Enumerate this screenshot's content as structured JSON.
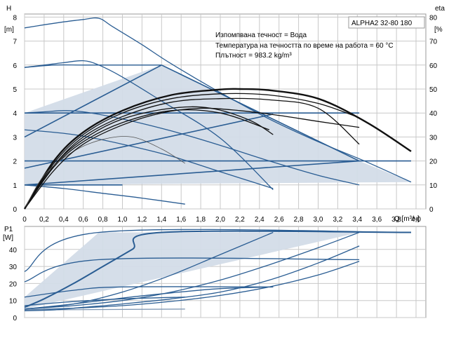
{
  "chart_data": [
    {
      "type": "line",
      "model_label": "ALPHA2 32-80 180",
      "notes": [
        "Изпомпвана течност = Вода",
        "Температура на течността по време на работа = 60 °C",
        "Плътност = 983.2 kg/m³"
      ],
      "ylabel_line1": "H",
      "ylabel_line2": "[m]",
      "y2label_line1": "eta",
      "y2label_line2": "[%",
      "xlabel": "Q [m³/ч]",
      "x_ticks": [
        "0",
        "0,2",
        "0,4",
        "0,6",
        "0,8",
        "1,0",
        "1,2",
        "1,4",
        "1,6",
        "1,8",
        "2,0",
        "2,2",
        "2,4",
        "2,6",
        "2,8",
        "3,0",
        "3,2",
        "3,4",
        "3,6",
        "3,8",
        "4,0"
      ],
      "y_ticks": [
        "0",
        "1",
        "2",
        "3",
        "4",
        "5",
        "6",
        "7",
        "8"
      ],
      "y2_ticks": [
        "0",
        "10",
        "20",
        "30",
        "40",
        "50",
        "60",
        "70",
        "80"
      ],
      "xlim": [
        0,
        4.05
      ],
      "ylim": [
        0,
        8.8
      ],
      "y2lim": [
        0,
        88
      ],
      "grid": true,
      "operating_area": [
        [
          0,
          1
        ],
        [
          0,
          4
        ],
        [
          1.4,
          6
        ],
        [
          3.42,
          2
        ],
        [
          3.95,
          1.12
        ]
      ],
      "series": [
        {
          "role": "pump",
          "x": [
            0,
            0.2,
            0.4,
            0.6,
            0.76,
            0.9,
            1.2,
            1.5,
            2.0,
            2.5,
            3.0,
            3.5,
            3.95
          ],
          "y": [
            7.55,
            7.68,
            7.8,
            7.9,
            7.95,
            7.6,
            6.85,
            6.05,
            4.85,
            3.75,
            2.8,
            1.95,
            1.12
          ]
        },
        {
          "role": "pump",
          "x": [
            0,
            0.2,
            0.4,
            0.6,
            0.76,
            1.0,
            1.4,
            2.0,
            2.54
          ],
          "y": [
            5.9,
            6.0,
            6.1,
            6.18,
            6.0,
            5.5,
            4.5,
            2.95,
            0.8
          ]
        },
        {
          "role": "pump",
          "x": [
            0,
            0.3,
            0.6,
            1.0,
            1.4
          ],
          "y": [
            5.9,
            6.0,
            6.0,
            6.0,
            6.0
          ]
        },
        {
          "role": "pump",
          "x": [
            0,
            1.4
          ],
          "y": [
            3.0,
            6.0
          ]
        },
        {
          "role": "pump",
          "x": [
            1.4,
            3.42
          ],
          "y": [
            6.0,
            2.0
          ]
        },
        {
          "role": "pump",
          "x": [
            0,
            0.2,
            0.4,
            0.6,
            1.0,
            1.5,
            2.0,
            2.5,
            3.0,
            3.42
          ],
          "y": [
            4.0,
            4.05,
            4.1,
            4.05,
            3.75,
            3.25,
            2.65,
            2.0,
            1.4,
            1.0
          ]
        },
        {
          "role": "pump",
          "x": [
            0,
            3.42
          ],
          "y": [
            4.0,
            4.0
          ]
        },
        {
          "role": "pump",
          "x": [
            0,
            3.42
          ],
          "y": [
            1.0,
            2.0
          ]
        },
        {
          "role": "pump",
          "x": [
            0,
            3.95
          ],
          "y": [
            2.0,
            2.0
          ]
        },
        {
          "role": "pump",
          "x": [
            0,
            2.54
          ],
          "y": [
            1.7,
            3.95
          ]
        },
        {
          "role": "pump",
          "x": [
            0,
            1.0
          ],
          "y": [
            1.0,
            1.0
          ]
        },
        {
          "role": "pump",
          "x": [
            0,
            0.5,
            1.0,
            1.5,
            2.0,
            2.54
          ],
          "y": [
            3.3,
            3.1,
            2.7,
            2.2,
            1.55,
            0.85
          ]
        },
        {
          "role": "pump",
          "x": [
            0,
            0.4,
            0.8,
            1.2,
            1.64
          ],
          "y": [
            1.0,
            0.85,
            0.65,
            0.45,
            0.2
          ]
        },
        {
          "role": "eta",
          "x": [
            0,
            0.3,
            0.6,
            1.0,
            1.5,
            2.0,
            2.2,
            2.5,
            3.0,
            3.5,
            3.95
          ],
          "y": [
            0,
            20,
            32,
            41,
            47.5,
            49.8,
            50,
            49.5,
            46,
            36,
            24
          ]
        },
        {
          "role": "eta",
          "x": [
            0,
            0.3,
            0.6,
            1.0,
            1.5,
            2.0,
            2.5,
            3.0,
            3.42
          ],
          "y": [
            0,
            19,
            31,
            40,
            46,
            48,
            47.5,
            44,
            38
          ]
        },
        {
          "role": "eta",
          "x": [
            0,
            0.3,
            0.6,
            1.0,
            1.5,
            2.0,
            2.5,
            3.0,
            3.42
          ],
          "y": [
            0,
            18,
            30,
            38.5,
            44.5,
            46,
            45.5,
            42,
            27
          ]
        },
        {
          "role": "eta",
          "x": [
            0,
            0.3,
            0.6,
            1.0,
            1.5,
            1.9,
            2.3,
            2.54
          ],
          "y": [
            0,
            18,
            29,
            37.5,
            42,
            42,
            37,
            31
          ]
        },
        {
          "role": "eta",
          "x": [
            0,
            0.3,
            0.6,
            1.0,
            1.5,
            2.0,
            2.5
          ],
          "y": [
            0,
            17.5,
            28,
            36,
            41,
            40,
            33
          ]
        },
        {
          "role": "eta",
          "x": [
            0,
            0.2,
            0.5,
            0.8,
            1.1,
            1.4,
            1.64
          ],
          "y": [
            0,
            14,
            24,
            29,
            30,
            25,
            19
          ]
        },
        {
          "role": "eta",
          "x": [
            0,
            0.3,
            0.6,
            1.0,
            1.4,
            1.8,
            2.2,
            2.6,
            3.0,
            3.42
          ],
          "y": [
            0,
            16,
            27,
            35,
            40,
            42,
            41,
            39,
            36.5,
            34
          ]
        }
      ]
    },
    {
      "type": "line",
      "ylabel_line1": "P1",
      "ylabel_line2": "[W]",
      "y_ticks": [
        "0",
        "10",
        "20",
        "30",
        "40"
      ],
      "xlim": [
        0,
        4.05
      ],
      "ylim": [
        0,
        51
      ],
      "grid": true,
      "operating_area": [
        [
          0,
          12
        ],
        [
          0,
          5
        ],
        [
          3.42,
          50
        ],
        [
          0.76,
          50
        ]
      ],
      "series": [
        {
          "role": "power",
          "x": [
            0,
            0.76,
            3.95
          ],
          "y": [
            27,
            50,
            50
          ]
        },
        {
          "role": "power",
          "x": [
            0,
            0.2,
            0.5,
            0.8,
            1.1,
            1.4,
            3.95
          ],
          "y": [
            6,
            11,
            20,
            30,
            40,
            50,
            50
          ]
        },
        {
          "role": "power",
          "x": [
            0,
            0.5,
            1.0,
            1.5,
            2.0,
            2.54
          ],
          "y": [
            5,
            8,
            15,
            25,
            37,
            50
          ]
        },
        {
          "role": "power",
          "x": [
            0,
            0.5,
            1.0,
            1.5,
            2.0,
            2.5,
            3.0,
            3.42
          ],
          "y": [
            5,
            7,
            10,
            15,
            22,
            31,
            41,
            50
          ]
        },
        {
          "role": "power",
          "x": [
            0,
            0.5,
            1.0,
            1.5,
            2.0,
            2.5,
            3.0,
            3.42
          ],
          "y": [
            4.5,
            5.5,
            7,
            9.5,
            13,
            18,
            25,
            33
          ]
        },
        {
          "role": "power",
          "x": [
            0,
            0.76,
            3.42
          ],
          "y": [
            21,
            34,
            34
          ]
        },
        {
          "role": "power",
          "x": [
            0,
            0.5,
            1.0,
            1.5,
            2.0,
            2.54
          ],
          "y": [
            5,
            8,
            11.5,
            14.5,
            17,
            18
          ]
        },
        {
          "role": "power",
          "x": [
            0,
            0.5,
            1.0,
            2.54
          ],
          "y": [
            12,
            16,
            18,
            18
          ]
        },
        {
          "role": "power",
          "x": [
            0,
            0.4,
            1.0,
            1.64
          ],
          "y": [
            7,
            9,
            11,
            12
          ]
        },
        {
          "role": "power",
          "x": [
            0,
            1.64
          ],
          "y": [
            4.5,
            5
          ]
        },
        {
          "role": "power",
          "x": [
            0,
            0.3,
            0.6,
            1.0,
            1.5,
            2.0,
            2.5,
            3.0,
            3.42
          ],
          "y": [
            4,
            4.5,
            6,
            8,
            11,
            15,
            22,
            32,
            42
          ]
        }
      ]
    }
  ]
}
